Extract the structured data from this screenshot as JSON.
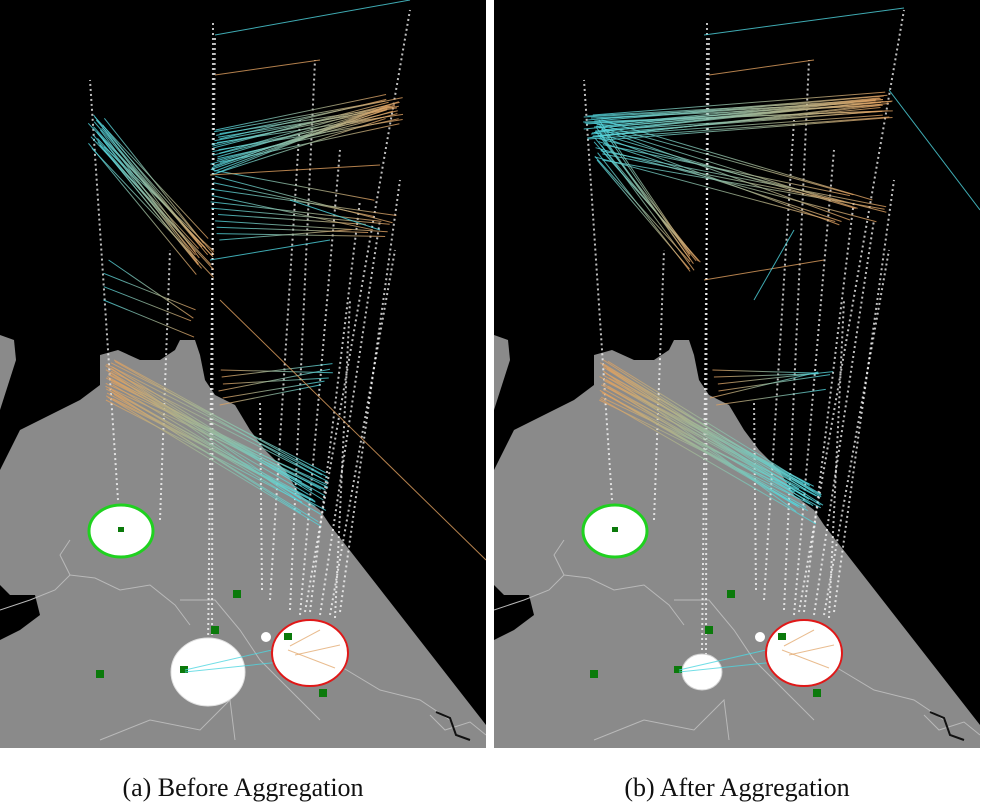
{
  "panels": [
    {
      "id": "a",
      "caption": "(a) Before Aggregation",
      "aggregated": false
    },
    {
      "id": "b",
      "caption": "(b) After Aggregation",
      "aggregated": true
    }
  ],
  "colors": {
    "background": "#000000",
    "land": "#8a8a8a",
    "landOutline": "#b9b9b9",
    "cyanLink": "#4fd6e0",
    "orangeLink": "#e0a060",
    "pillar": "#ffffff",
    "sourceRing": "#1fd11f",
    "destRing": "#e01818",
    "marker": "#0b7a0b"
  }
}
